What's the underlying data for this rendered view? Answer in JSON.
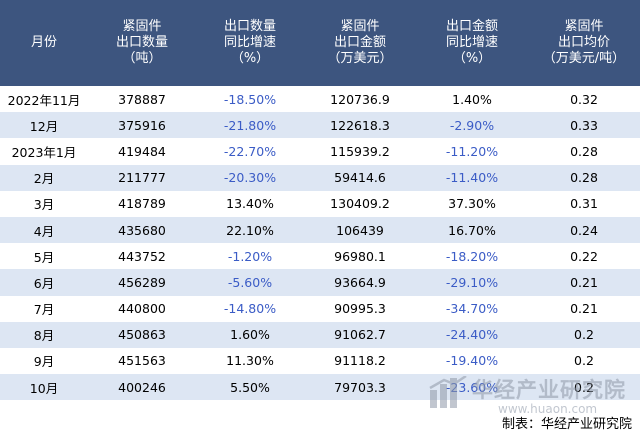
{
  "table": {
    "headers": [
      [
        "月份"
      ],
      [
        "紧固件",
        "出口数量",
        "（吨）"
      ],
      [
        "出口数量",
        "同比增速",
        "（%）"
      ],
      [
        "紧固件",
        "出口金额",
        "（万美元）"
      ],
      [
        "出口金额",
        "同比增速",
        "（%）"
      ],
      [
        "紧固件",
        "出口均价",
        "（万美元/吨）"
      ]
    ],
    "rows": [
      [
        "2022年11月",
        "378887",
        "-18.50%",
        "120736.9",
        "1.40%",
        "0.32"
      ],
      [
        "12月",
        "375916",
        "-21.80%",
        "122618.3",
        "-2.90%",
        "0.33"
      ],
      [
        "2023年1月",
        "419484",
        "-22.70%",
        "115939.2",
        "-11.20%",
        "0.28"
      ],
      [
        "2月",
        "211777",
        "-20.30%",
        "59414.6",
        "-11.40%",
        "0.28"
      ],
      [
        "3月",
        "418789",
        "13.40%",
        "130409.2",
        "37.30%",
        "0.31"
      ],
      [
        "4月",
        "435680",
        "22.10%",
        "106439",
        "16.70%",
        "0.24"
      ],
      [
        "5月",
        "443752",
        "-1.20%",
        "96980.1",
        "-18.20%",
        "0.22"
      ],
      [
        "6月",
        "456289",
        "-5.60%",
        "93664.9",
        "-29.10%",
        "0.21"
      ],
      [
        "7月",
        "440800",
        "-14.80%",
        "90995.3",
        "-34.70%",
        "0.21"
      ],
      [
        "8月",
        "450863",
        "1.60%",
        "91062.7",
        "-24.40%",
        "0.2"
      ],
      [
        "9月",
        "451563",
        "11.30%",
        "91118.2",
        "-19.40%",
        "0.2"
      ],
      [
        "10月",
        "400246",
        "5.50%",
        "79703.3",
        "-23.60%",
        "0.2"
      ]
    ]
  },
  "colors": {
    "header_bg": "#3d557f",
    "header_text": "#ffffff",
    "row_alt_bg": "#dde6f3",
    "negative_text": "#3b5cc6"
  },
  "footer": {
    "source": "制表：华经产业研究院"
  },
  "watermark": {
    "name": "华经产业研究院",
    "url": "www.huaon.com"
  }
}
